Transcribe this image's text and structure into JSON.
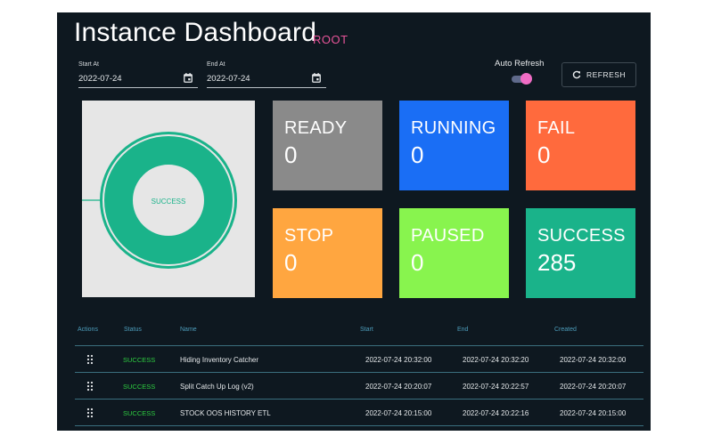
{
  "header": {
    "title": "Instance Dashboard",
    "badge": "ROOT"
  },
  "filters": {
    "start": {
      "label": "Start At",
      "value": "2022-07-24",
      "icon": "calendar-icon"
    },
    "end": {
      "label": "End At",
      "value": "2022-07-24",
      "icon": "calendar-icon"
    }
  },
  "auto_refresh": {
    "label": "Auto Refresh",
    "enabled": true
  },
  "refresh_button": {
    "label": "REFRESH",
    "icon": "refresh-icon"
  },
  "donut": {
    "label": "SUCCESS",
    "color": "#1ab38a"
  },
  "tiles": [
    {
      "label": "READY",
      "value": "0",
      "color": "#8a8a8a"
    },
    {
      "label": "RUNNING",
      "value": "0",
      "color": "#1a6ef5"
    },
    {
      "label": "FAIL",
      "value": "0",
      "color": "#ff6a3d"
    },
    {
      "label": "STOP",
      "value": "0",
      "color": "#ffa640"
    },
    {
      "label": "PAUSED",
      "value": "0",
      "color": "#88f44e"
    },
    {
      "label": "SUCCESS",
      "value": "285",
      "color": "#1ab38a"
    }
  ],
  "table": {
    "headers": [
      "Actions",
      "Status",
      "Name",
      "Start",
      "End",
      "Created"
    ],
    "rows": [
      {
        "status": "SUCCESS",
        "name": "Hiding Inventory Catcher",
        "start": "2022-07-24 20:32:00",
        "end": "2022-07-24 20:32:20",
        "created": "2022-07-24 20:32:00"
      },
      {
        "status": "SUCCESS",
        "name": "Split Catch Up Log (v2)",
        "start": "2022-07-24 20:20:07",
        "end": "2022-07-24 20:22:57",
        "created": "2022-07-24 20:20:07"
      },
      {
        "status": "SUCCESS",
        "name": "STOCK OOS HISTORY ETL",
        "start": "2022-07-24 20:15:00",
        "end": "2022-07-24 20:22:16",
        "created": "2022-07-24 20:15:00"
      }
    ]
  }
}
